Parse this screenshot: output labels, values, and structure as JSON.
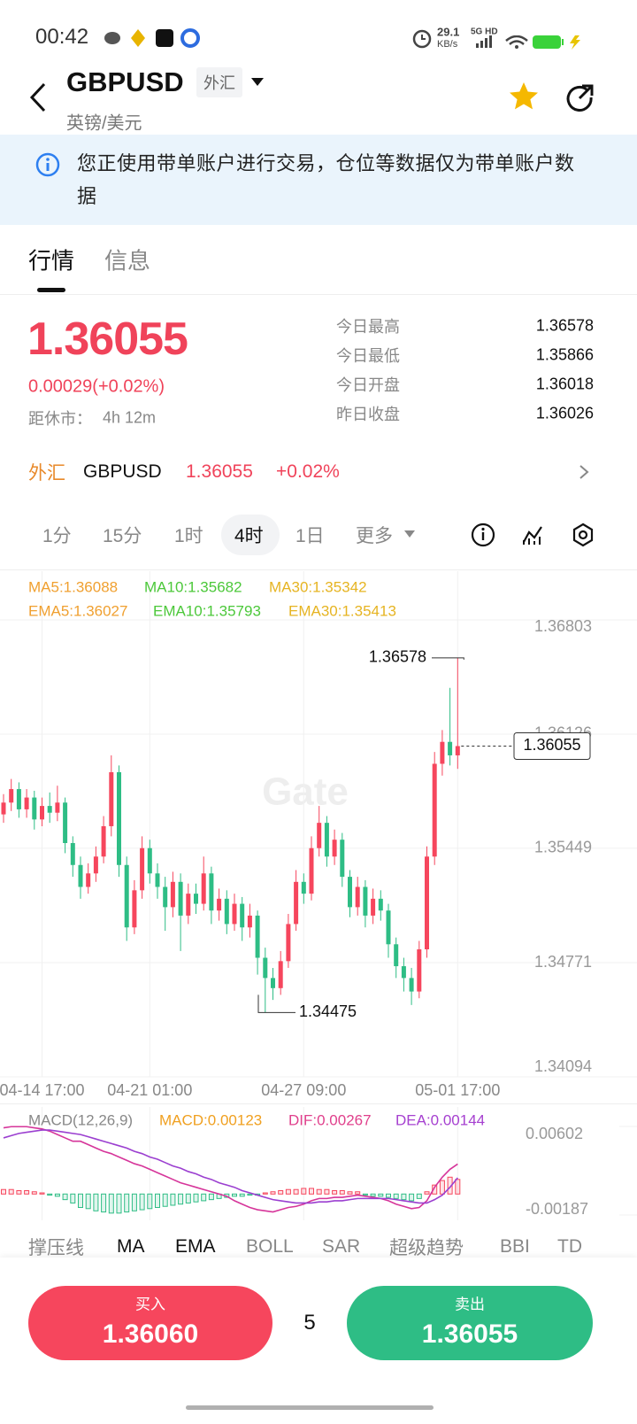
{
  "status_bar": {
    "time": "00:42",
    "net_speed": "29.1",
    "net_unit": "KB/s",
    "network": "5G HD"
  },
  "header": {
    "symbol": "GBPUSD",
    "tag": "外汇",
    "subtitle": "英镑/美元"
  },
  "notice": "您正使用带单账户进行交易，仓位等数据仅为带单账户数据",
  "tabs": [
    "行情",
    "信息"
  ],
  "quote": {
    "price": "1.36055",
    "change": "0.00029(+0.02%)",
    "close_label": "距休市：",
    "close_time": "4h 12m",
    "stats": [
      {
        "label": "今日最高",
        "value": "1.36578"
      },
      {
        "label": "今日最低",
        "value": "1.35866"
      },
      {
        "label": "今日开盘",
        "value": "1.36018"
      },
      {
        "label": "昨日收盘",
        "value": "1.36026"
      }
    ]
  },
  "ticker": {
    "market": "外汇",
    "symbol": "GBPUSD",
    "price": "1.36055",
    "change": "+0.02%"
  },
  "timeframes": [
    "1分",
    "15分",
    "1时",
    "4时",
    "1日",
    "更多"
  ],
  "chart_data": {
    "type": "candlestick",
    "watermark": "Gate",
    "legend": [
      {
        "text": "MA5:1.36088",
        "color": "#f0a030"
      },
      {
        "text": "MA10:1.35682",
        "color": "#4cc83a"
      },
      {
        "text": "MA30:1.35342",
        "color": "#e6b422"
      },
      {
        "text": "EMA5:1.36027",
        "color": "#f0a030"
      },
      {
        "text": "EMA10:1.35793",
        "color": "#4cc83a"
      },
      {
        "text": "EMA30:1.35413",
        "color": "#e6b422"
      }
    ],
    "categories": [
      null,
      null,
      null,
      null,
      null,
      "04-14 17:00",
      null,
      null,
      null,
      null,
      null,
      null,
      null,
      null,
      null,
      null,
      null,
      null,
      null,
      "04-21 01:00",
      null,
      null,
      null,
      null,
      null,
      null,
      null,
      null,
      null,
      null,
      null,
      null,
      null,
      null,
      null,
      null,
      null,
      null,
      null,
      "04-27 09:00",
      null,
      null,
      null,
      null,
      null,
      null,
      null,
      null,
      null,
      null,
      null,
      null,
      null,
      null,
      null,
      null,
      null,
      null,
      null,
      "05-01 17:00"
    ],
    "open": [
      1.3565,
      1.3572,
      1.358,
      1.3568,
      1.3575,
      1.3562,
      1.357,
      1.3566,
      1.3572,
      1.3548,
      1.3535,
      1.3522,
      1.353,
      1.354,
      1.3558,
      1.359,
      1.3535,
      1.3498,
      1.352,
      1.3545,
      1.353,
      1.3522,
      1.351,
      1.3525,
      1.3505,
      1.3518,
      1.3512,
      1.353,
      1.3508,
      1.3515,
      1.35,
      1.3512,
      1.3498,
      1.3505,
      1.348,
      1.3468,
      1.3462,
      1.3478,
      1.35,
      1.3525,
      1.3518,
      1.3545,
      1.356,
      1.354,
      1.355,
      1.3528,
      1.351,
      1.3522,
      1.3505,
      1.3515,
      1.3508,
      1.3488,
      1.3475,
      1.3468,
      1.346,
      1.3485,
      1.354,
      1.3595,
      1.3608,
      1.36
    ],
    "high": [
      1.3577,
      1.3586,
      1.3584,
      1.358,
      1.3579,
      1.3575,
      1.3578,
      1.3582,
      1.3575,
      1.3552,
      1.354,
      1.3536,
      1.3546,
      1.3564,
      1.36,
      1.3594,
      1.354,
      1.3526,
      1.3552,
      1.355,
      1.3536,
      1.3528,
      1.3531,
      1.353,
      1.3524,
      1.3524,
      1.354,
      1.3534,
      1.3521,
      1.352,
      1.3518,
      1.3516,
      1.3512,
      1.3508,
      1.3486,
      1.3474,
      1.3484,
      1.3506,
      1.3532,
      1.353,
      1.3552,
      1.357,
      1.3564,
      1.3556,
      1.3554,
      1.3532,
      1.3528,
      1.3526,
      1.3521,
      1.352,
      1.3512,
      1.3492,
      1.348,
      1.3474,
      1.349,
      1.3546,
      1.3602,
      1.3615,
      1.364,
      1.36578
    ],
    "low": [
      1.356,
      1.3567,
      1.3563,
      1.3563,
      1.3556,
      1.3558,
      1.356,
      1.3561,
      1.3542,
      1.3528,
      1.3515,
      1.3518,
      1.3525,
      1.3536,
      1.3552,
      1.3528,
      1.349,
      1.3494,
      1.3515,
      1.3524,
      1.3515,
      1.3496,
      1.3504,
      1.3484,
      1.35,
      1.3506,
      1.3508,
      1.35,
      1.3502,
      1.3494,
      1.3496,
      1.349,
      1.3492,
      1.347,
      1.34475,
      1.3455,
      1.3458,
      1.3474,
      1.3496,
      1.3512,
      1.3514,
      1.354,
      1.3534,
      1.3535,
      1.3522,
      1.3504,
      1.3505,
      1.3498,
      1.35,
      1.3502,
      1.348,
      1.3468,
      1.346,
      1.3452,
      1.3456,
      1.348,
      1.3535,
      1.3588,
      1.3594,
      1.3592
    ],
    "close": [
      1.3572,
      1.358,
      1.3568,
      1.3575,
      1.3562,
      1.357,
      1.3566,
      1.3572,
      1.3548,
      1.3535,
      1.3522,
      1.353,
      1.354,
      1.3558,
      1.359,
      1.3535,
      1.3498,
      1.352,
      1.3545,
      1.353,
      1.3522,
      1.351,
      1.3525,
      1.3505,
      1.3518,
      1.3512,
      1.353,
      1.3508,
      1.3515,
      1.35,
      1.3512,
      1.3498,
      1.3505,
      1.348,
      1.3468,
      1.3462,
      1.3478,
      1.35,
      1.3525,
      1.3518,
      1.3545,
      1.356,
      1.354,
      1.355,
      1.3528,
      1.351,
      1.3522,
      1.3505,
      1.3515,
      1.3508,
      1.3488,
      1.3475,
      1.3468,
      1.346,
      1.3485,
      1.354,
      1.3595,
      1.3608,
      1.36,
      1.36055
    ],
    "up_color": "#f6465d",
    "down_color": "#2ebd85",
    "ylim": [
      1.34094,
      1.36803
    ],
    "yticks": [
      1.36803,
      1.36126,
      1.35449,
      1.34771,
      1.34094
    ],
    "grid": true,
    "high_label": 1.36578,
    "low_label": 1.34475,
    "last_price": 1.36055,
    "macd": {
      "title": "MACD(12,26,9)",
      "labels": [
        {
          "text": "MACD:0.00123",
          "color": "#f0a020"
        },
        {
          "text": "DIF:0.00267",
          "color": "#e0408c"
        },
        {
          "text": "DEA:0.00144",
          "color": "#a640d0"
        }
      ],
      "ylim": [
        -0.00187,
        0.00602
      ],
      "yticks": [
        0.00602,
        -0.00187
      ],
      "hist": [
        0.0004,
        0.0004,
        0.0003,
        0.0003,
        0.0002,
        0.0001,
        -0.0001,
        -0.0002,
        -0.0005,
        -0.0008,
        -0.0012,
        -0.0013,
        -0.0015,
        -0.0016,
        -0.0017,
        -0.0017,
        -0.0016,
        -0.0015,
        -0.0014,
        -0.0013,
        -0.0012,
        -0.0011,
        -0.001,
        -0.0009,
        -0.0008,
        -0.0007,
        -0.0006,
        -0.0005,
        -0.0004,
        -0.0003,
        -0.0002,
        -0.0002,
        -0.0001,
        -0.0001,
        0.0001,
        0.0002,
        0.0003,
        0.0004,
        0.0004,
        0.0005,
        0.0005,
        0.0004,
        0.0004,
        0.0003,
        0.0003,
        0.0002,
        0.0002,
        -0.0001,
        -0.0002,
        -0.0002,
        -0.0003,
        -0.0004,
        -0.0005,
        -0.0006,
        -0.0004,
        0.0002,
        0.0008,
        0.0012,
        0.0015,
        0.0013
      ],
      "series": [
        {
          "name": "DIF",
          "color": "#d6359a",
          "values": [
            0.0059,
            0.006,
            0.006,
            0.006,
            0.0059,
            0.0058,
            0.0056,
            0.0053,
            0.005,
            0.0047,
            0.0047,
            0.0044,
            0.0041,
            0.0038,
            0.0036,
            0.0033,
            0.003,
            0.0027,
            0.0025,
            0.0022,
            0.0019,
            0.0016,
            0.0013,
            0.001,
            0.0008,
            0.0006,
            0.0004,
            0.0002,
            0,
            -0.0002,
            -0.0006,
            -0.0009,
            -0.0012,
            -0.0014,
            -0.0015,
            -0.0016,
            -0.0014,
            -0.0012,
            -0.0011,
            -0.0009,
            -0.0006,
            -0.0004,
            -0.0004,
            -0.0003,
            -0.0003,
            -0.0002,
            -0.0001,
            -0.0002,
            -0.0003,
            -0.0004,
            -0.0006,
            -0.0009,
            -0.0011,
            -0.0013,
            -0.0012,
            -0.0006,
            0.0006,
            0.0015,
            0.0022,
            0.00267
          ]
        },
        {
          "name": "DEA",
          "color": "#9b3fd0",
          "values": [
            0.005,
            0.0052,
            0.0054,
            0.0055,
            0.0056,
            0.0057,
            0.0057,
            0.0056,
            0.0055,
            0.0054,
            0.0053,
            0.0051,
            0.0049,
            0.0047,
            0.0045,
            0.0043,
            0.0041,
            0.0038,
            0.0036,
            0.0033,
            0.0031,
            0.0028,
            0.0025,
            0.0023,
            0.002,
            0.0018,
            0.0015,
            0.0013,
            0.001,
            0.0008,
            0.0006,
            0.0003,
            0.0001,
            -0.0001,
            -0.0003,
            -0.0005,
            -0.0006,
            -0.0007,
            -0.0008,
            -0.0008,
            -0.0008,
            -0.0007,
            -0.0007,
            -0.0006,
            -0.0006,
            -0.0005,
            -0.0004,
            -0.0004,
            -0.0004,
            -0.0004,
            -0.0004,
            -0.0005,
            -0.0006,
            -0.0007,
            -0.0008,
            -0.0008,
            -0.0005,
            -0.0001,
            0.0006,
            0.00144
          ]
        }
      ]
    }
  },
  "indicators": [
    "撑压线",
    "MA",
    "EMA",
    "BOLL",
    "SAR",
    "超级趋势",
    "BBI",
    "TD"
  ],
  "trade": {
    "buy_label": "买入",
    "buy_price": "1.36060",
    "quantity": "5",
    "sell_label": "卖出",
    "sell_price": "1.36055"
  }
}
